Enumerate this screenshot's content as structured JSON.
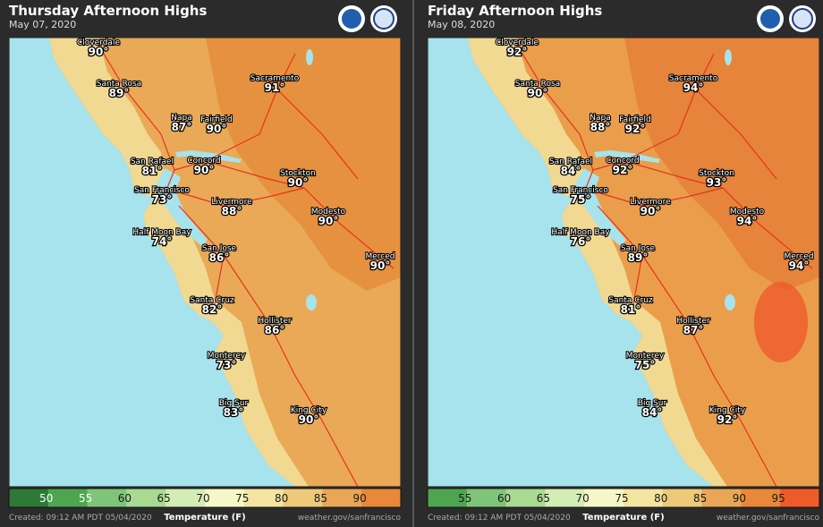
{
  "panels": [
    {
      "title": "Thursday Afternoon Highs",
      "date": "May 07, 2020",
      "cities": [
        {
          "name": "Cloverdale",
          "temp": "90°"
        },
        {
          "name": "Santa Rosa",
          "temp": "89°"
        },
        {
          "name": "Napa",
          "temp": "87°"
        },
        {
          "name": "Fairfield",
          "temp": "90°"
        },
        {
          "name": "Sacramento",
          "temp": "91°"
        },
        {
          "name": "San Rafael",
          "temp": "81°"
        },
        {
          "name": "Concord",
          "temp": "90°"
        },
        {
          "name": "Stockton",
          "temp": "90°"
        },
        {
          "name": "San Francisco",
          "temp": "73°"
        },
        {
          "name": "Livermore",
          "temp": "88°"
        },
        {
          "name": "Modesto",
          "temp": "90°"
        },
        {
          "name": "Half Moon Bay",
          "temp": "74°"
        },
        {
          "name": "San Jose",
          "temp": "86°"
        },
        {
          "name": "Merced",
          "temp": "90°"
        },
        {
          "name": "Santa Cruz",
          "temp": "82°"
        },
        {
          "name": "Hollister",
          "temp": "86°"
        },
        {
          "name": "Monterey",
          "temp": "73°"
        },
        {
          "name": "Big Sur",
          "temp": "83°"
        },
        {
          "name": "King City",
          "temp": "90°"
        }
      ],
      "legend": {
        "title": "Temperature (F)",
        "labels": [
          50,
          55,
          60,
          65,
          70,
          75,
          80,
          85,
          90
        ],
        "colors": [
          "#2c7a35",
          "#4da64f",
          "#7ec57a",
          "#a9da91",
          "#d3edb5",
          "#f5f8c6",
          "#f3e49f",
          "#edc97a",
          "#e9a656",
          "#e8893a"
        ]
      },
      "created": "Created: 09:12 AM PDT 05/04/2020",
      "source": "weather.gov/sanfrancisco"
    },
    {
      "title": "Friday Afternoon Highs",
      "date": "May 08, 2020",
      "cities": [
        {
          "name": "Cloverdale",
          "temp": "92°"
        },
        {
          "name": "Santa Rosa",
          "temp": "90°"
        },
        {
          "name": "Napa",
          "temp": "88°"
        },
        {
          "name": "Fairfield",
          "temp": "92°"
        },
        {
          "name": "Sacramento",
          "temp": "94°"
        },
        {
          "name": "San Rafael",
          "temp": "84°"
        },
        {
          "name": "Concord",
          "temp": "92°"
        },
        {
          "name": "Stockton",
          "temp": "93°"
        },
        {
          "name": "San Francisco",
          "temp": "75°"
        },
        {
          "name": "Livermore",
          "temp": "90°"
        },
        {
          "name": "Modesto",
          "temp": "94°"
        },
        {
          "name": "Half Moon Bay",
          "temp": "76°"
        },
        {
          "name": "San Jose",
          "temp": "89°"
        },
        {
          "name": "Merced",
          "temp": "94°"
        },
        {
          "name": "Santa Cruz",
          "temp": "81°"
        },
        {
          "name": "Hollister",
          "temp": "87°"
        },
        {
          "name": "Monterey",
          "temp": "75°"
        },
        {
          "name": "Big Sur",
          "temp": "84°"
        },
        {
          "name": "King City",
          "temp": "92°"
        }
      ],
      "legend": {
        "title": "Temperature (F)",
        "labels": [
          55,
          60,
          65,
          70,
          75,
          80,
          85,
          90,
          95
        ],
        "colors": [
          "#4da64f",
          "#7ec57a",
          "#a9da91",
          "#d3edb5",
          "#f5f8c6",
          "#f3e49f",
          "#edc97a",
          "#e9a656",
          "#e8893a",
          "#ef5a2b"
        ]
      },
      "created": "Created: 09:12 AM PDT 05/04/2020",
      "source": "weather.gov/sanfrancisco"
    }
  ]
}
